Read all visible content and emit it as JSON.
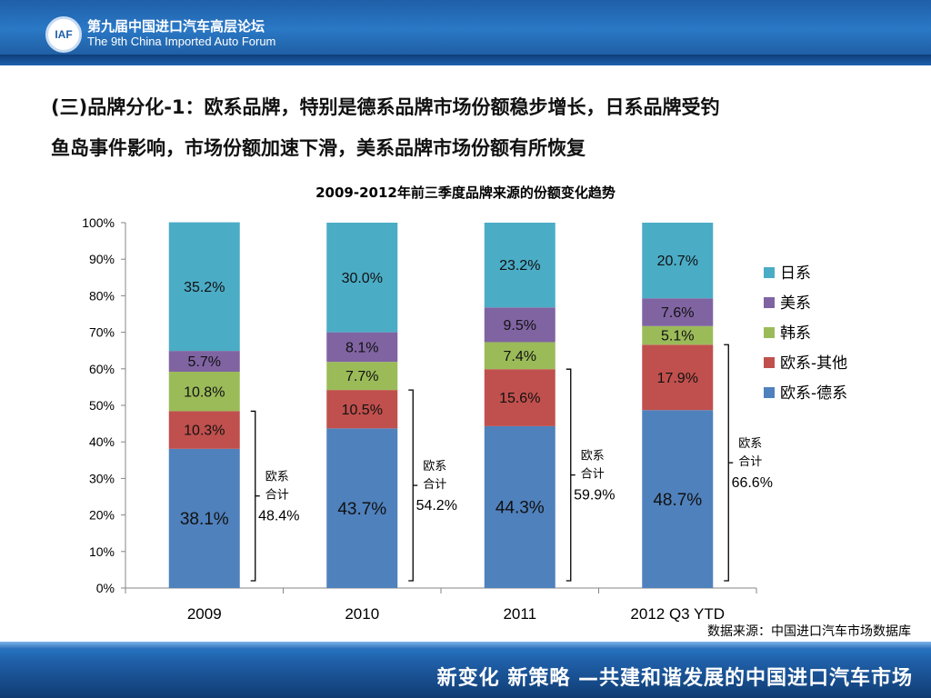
{
  "header": {
    "logo_text": "IAF",
    "forum_name_cn": "第九届中国进口汽车高层论坛",
    "forum_name_en": "The 9th China Imported Auto Forum"
  },
  "slide": {
    "title_line1": "(三)品牌分化-1：欧系品牌，特别是德系品牌市场份额稳步增长，日系品牌受钓",
    "title_line2": "鱼岛事件影响，市场份额加速下滑，美系品牌市场份额有所恢复",
    "source": "数据来源：中国进口汽车市场数据库",
    "footer": "新变化 新策略 —共建和谐发展的中国进口汽车市场"
  },
  "chart_data": {
    "type": "bar",
    "stacked": true,
    "title": "2009-2012年前三季度品牌来源的份额变化趋势",
    "categories": [
      "2009",
      "2010",
      "2011",
      "2012 Q3 YTD"
    ],
    "ylim": [
      0,
      100
    ],
    "yticks": [
      "0%",
      "10%",
      "20%",
      "30%",
      "40%",
      "50%",
      "60%",
      "70%",
      "80%",
      "90%",
      "100%"
    ],
    "series": [
      {
        "name": "欧系-德系",
        "color": "#4f81bd",
        "values": [
          38.1,
          43.7,
          44.3,
          48.7
        ],
        "labels": [
          "38.1%",
          "43.7%",
          "44.3%",
          "48.7%"
        ]
      },
      {
        "name": "欧系-其他",
        "color": "#c0504d",
        "values": [
          10.3,
          10.5,
          15.6,
          17.9
        ],
        "labels": [
          "10.3%",
          "10.5%",
          "15.6%",
          "17.9%"
        ]
      },
      {
        "name": "韩系",
        "color": "#9bbb59",
        "values": [
          10.8,
          7.7,
          7.4,
          5.1
        ],
        "labels": [
          "10.8%",
          "7.7%",
          "7.4%",
          "5.1%"
        ]
      },
      {
        "name": "美系",
        "color": "#8064a2",
        "values": [
          5.7,
          8.1,
          9.5,
          7.6
        ],
        "labels": [
          "5.7%",
          "8.1%",
          "9.5%",
          "7.6%"
        ]
      },
      {
        "name": "日系",
        "color": "#4bacc6",
        "values": [
          35.2,
          30.0,
          23.2,
          20.7
        ],
        "labels": [
          "35.2%",
          "30.0%",
          "23.2%",
          "20.7%"
        ]
      }
    ],
    "legend_order": [
      "日系",
      "美系",
      "韩系",
      "欧系-其他",
      "欧系-德系"
    ],
    "legend_position": "right",
    "annotations": {
      "label_line1": "欧系",
      "label_line2": "合计",
      "values": [
        48.4,
        54.2,
        59.9,
        66.6
      ],
      "value_labels": [
        "48.4%",
        "54.2%",
        "59.9%",
        "66.6%"
      ]
    }
  }
}
